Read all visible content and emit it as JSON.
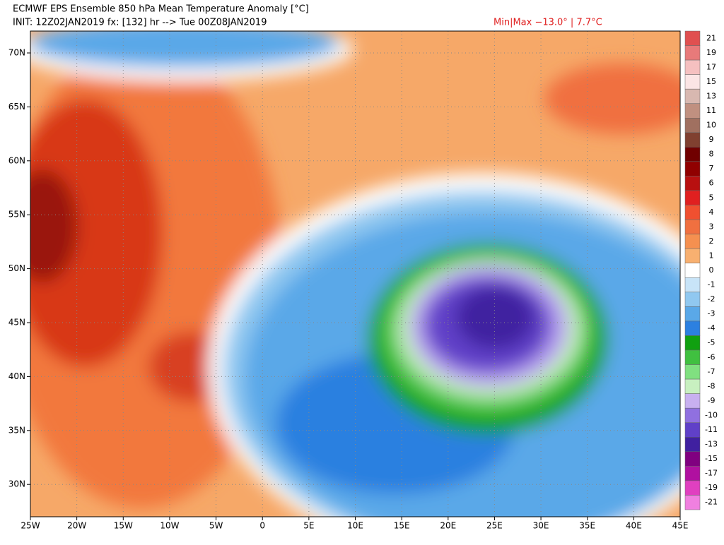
{
  "header": {
    "title": "ECMWF EPS Ensemble 850 hPa Mean Temperature Anomaly [°C]",
    "subtitle": "INIT: 12Z02JAN2019 fx: [132] hr --> Tue 00Z08JAN2019",
    "minmax": "Min|Max −13.0° | 7.7°C"
  },
  "map": {
    "lat_labels": [
      "70N",
      "65N",
      "60N",
      "55N",
      "50N",
      "45N",
      "40N",
      "35N",
      "30N"
    ],
    "lon_labels": [
      "25W",
      "20W",
      "15W",
      "10W",
      "5W",
      "0",
      "5E",
      "10E",
      "15E",
      "20E",
      "25E",
      "30E",
      "35E",
      "40E",
      "45E"
    ]
  },
  "colorbar": {
    "labels": [
      "21",
      "19",
      "17",
      "15",
      "13",
      "11",
      "10",
      "9",
      "8",
      "7",
      "6",
      "5",
      "4",
      "3",
      "2",
      "1",
      "0",
      "-1",
      "-2",
      "-3",
      "-4",
      "-5",
      "-6",
      "-7",
      "-8",
      "-9",
      "-10",
      "-11",
      "-13",
      "-15",
      "-17",
      "-19",
      "-21"
    ],
    "colors": [
      "#e05050",
      "#e87a7a",
      "#f5c0c0",
      "#fbe5e5",
      "#d8b8b0",
      "#c09080",
      "#a07060",
      "#804030",
      "#700000",
      "#900000",
      "#b81010",
      "#e02020",
      "#f05030",
      "#f07040",
      "#f59050",
      "#f8b070",
      "#ffffff",
      "#c8e4f8",
      "#90c8f0",
      "#5aa8e8",
      "#2c80e0",
      "#10a010",
      "#40c040",
      "#80e080",
      "#c8f0c0",
      "#c8b0f0",
      "#9070e0",
      "#6040c8",
      "#4020a0",
      "#800080",
      "#b010a0",
      "#e040c0",
      "#f080e0"
    ]
  }
}
